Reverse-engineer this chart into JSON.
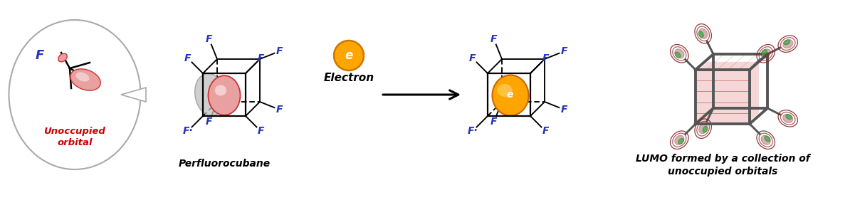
{
  "background_color": "#ffffff",
  "label_F_color": "#2233BB",
  "label_unoccupied_color": "#CC0000",
  "arrow_color": "#000000",
  "electron_circle_color": "#FFA500",
  "electron_text_color": "#ffffff",
  "orbital_color_light": "#E8A0A0",
  "orbital_color_dark": "#CC3333",
  "lumo_text": "LUMO formed by a collection of\nunoccupied orbitals",
  "perfluorocubane_text": "Perfluorocubane",
  "unoccupied_text": "Unoccupied\norbital",
  "electron_label": "Electron",
  "fig_width": 12.01,
  "fig_height": 2.88,
  "dpi": 100
}
